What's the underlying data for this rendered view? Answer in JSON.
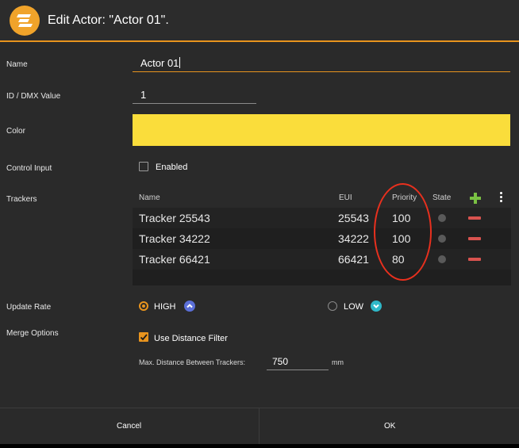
{
  "dialog": {
    "title": "Edit Actor: \"Actor 01\".",
    "accent_color": "#e8941e"
  },
  "fields": {
    "name_label": "Name",
    "name_value": "Actor 01",
    "id_label": "ID / DMX Value",
    "id_value": "1",
    "color_label": "Color",
    "color_value": "#fadd3b",
    "control_input_label": "Control Input",
    "enabled_label": "Enabled",
    "enabled_checked": false
  },
  "trackers": {
    "label": "Trackers",
    "columns": {
      "name": "Name",
      "eui": "EUI",
      "priority": "Priority",
      "state": "State"
    },
    "rows": [
      {
        "name": "Tracker 25543",
        "eui": "25543",
        "priority": "100"
      },
      {
        "name": "Tracker 34222",
        "eui": "34222",
        "priority": "100"
      },
      {
        "name": "Tracker 66421",
        "eui": "66421",
        "priority": "80"
      }
    ]
  },
  "update_rate": {
    "label": "Update Rate",
    "high_label": "HIGH",
    "low_label": "LOW",
    "selected": "HIGH"
  },
  "merge": {
    "label": "Merge Options",
    "use_distance_filter_label": "Use Distance Filter",
    "use_distance_filter_checked": true,
    "max_distance_label": "Max. Distance Between Trackers:",
    "max_distance_value": "750",
    "unit": "mm"
  },
  "footer": {
    "cancel_label": "Cancel",
    "ok_label": "OK"
  }
}
